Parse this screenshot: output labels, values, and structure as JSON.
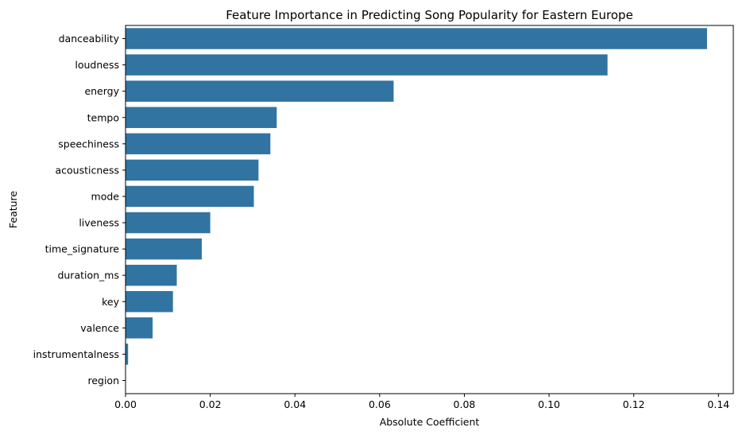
{
  "chart_data": {
    "type": "bar",
    "orientation": "horizontal",
    "title": "Feature Importance in Predicting Song Popularity for Eastern Europe",
    "xlabel": "Absolute Coefficient",
    "ylabel": "Feature",
    "xlim": [
      0,
      0.1435
    ],
    "xticks": [
      0.0,
      0.02,
      0.04,
      0.06,
      0.08,
      0.1,
      0.12,
      0.14
    ],
    "xtick_labels": [
      "0.00",
      "0.02",
      "0.04",
      "0.06",
      "0.08",
      "0.10",
      "0.12",
      "0.14"
    ],
    "grid": false,
    "bar_color": "#3274a1",
    "categories": [
      "danceability",
      "loudness",
      "energy",
      "tempo",
      "speechiness",
      "acousticness",
      "mode",
      "liveness",
      "time_signature",
      "duration_ms",
      "key",
      "valence",
      "instrumentalness",
      "region"
    ],
    "values": [
      0.1373,
      0.1138,
      0.0633,
      0.0357,
      0.0342,
      0.0314,
      0.0303,
      0.02,
      0.018,
      0.0121,
      0.0112,
      0.0064,
      0.0006,
      0.0
    ]
  }
}
